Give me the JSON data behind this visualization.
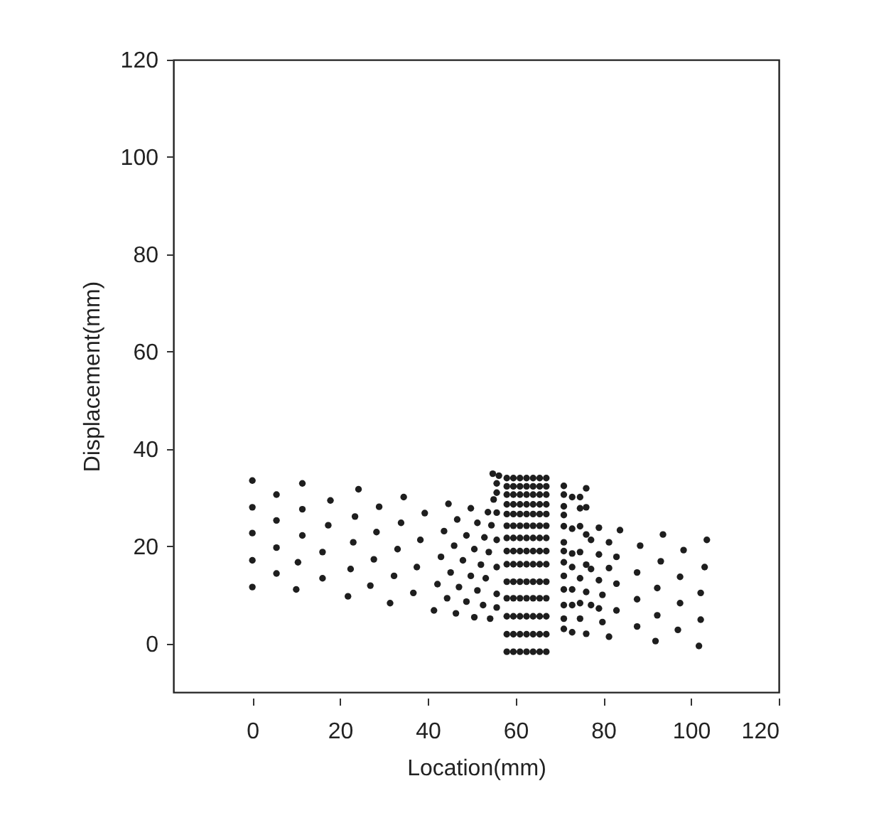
{
  "chart_data": {
    "type": "scatter",
    "xlabel": "Location(mm)",
    "ylabel": "Displacement(mm)",
    "xlim": [
      -18,
      120
    ],
    "ylim": [
      -10,
      120
    ],
    "xticks": [
      0,
      20,
      40,
      60,
      80,
      100,
      120
    ],
    "yticks": [
      0,
      20,
      40,
      60,
      80,
      100,
      120
    ],
    "grid": false,
    "marker": "circle",
    "series": [
      {
        "color": "#1e1e1e",
        "x": [
          0,
          0,
          0,
          0,
          0,
          5.5,
          5.5,
          5.5,
          5.5,
          10,
          10.4,
          11.4,
          11.4,
          11.4,
          16,
          16,
          17.3,
          17.8,
          21.8,
          22.4,
          23,
          23.4,
          24.2,
          26.9,
          27.7,
          28.3,
          28.9,
          31.4,
          32.3,
          33.1,
          33.9,
          34.5,
          36.7,
          37.5,
          38.3,
          39.3,
          41.4,
          42.2,
          43,
          43.7,
          44.7,
          44.4,
          45.2,
          46,
          46.7,
          46.4,
          47.1,
          48,
          48.8,
          49.8,
          48.8,
          49.8,
          50.6,
          51.3,
          50.6,
          51.3,
          52.1,
          52.9,
          53.7,
          52.6,
          53.2,
          53.9,
          54.5,
          55,
          54.8,
          54.2,
          55.7,
          55.7,
          55.7,
          55.7,
          55.7,
          55.7,
          55.7,
          56.2,
          58,
          59.5,
          61,
          62.5,
          64,
          65.5,
          67,
          58,
          59.5,
          61,
          62.5,
          64,
          65.5,
          67,
          58,
          59.5,
          61,
          62.5,
          64,
          65.5,
          67,
          58,
          59.5,
          61,
          62.5,
          64,
          65.5,
          67,
          58,
          59.5,
          61,
          62.5,
          64,
          65.5,
          67,
          58,
          59.5,
          61,
          62.5,
          64,
          65.5,
          67,
          58,
          59.5,
          61,
          62.5,
          64,
          65.5,
          67,
          58,
          59.5,
          61,
          62.5,
          64,
          65.5,
          67,
          58,
          59.5,
          61,
          62.5,
          64,
          65.5,
          67,
          58,
          59.5,
          61,
          62.5,
          64,
          65.5,
          67,
          58,
          59.5,
          61,
          62.5,
          64,
          65.5,
          67,
          58,
          59.5,
          61,
          62.5,
          64,
          65.5,
          67,
          58,
          59.5,
          61,
          62.5,
          64,
          65.5,
          67,
          58,
          59.5,
          61,
          62.5,
          64,
          65.5,
          67,
          71,
          71,
          71,
          71,
          71,
          71,
          71,
          71,
          71,
          71,
          71,
          71,
          71,
          72.9,
          72.9,
          72.9,
          72.9,
          72.9,
          72.9,
          72.9,
          74.7,
          74.7,
          74.7,
          74.7,
          74.7,
          74.7,
          74.7,
          76.1,
          76.1,
          76.1,
          76.1,
          76.1,
          76.1,
          77.2,
          77.2,
          77.2,
          79,
          79,
          79,
          79,
          79.8,
          79.8,
          81.3,
          81.3,
          81.3,
          83,
          83,
          83,
          83.8,
          87.7,
          87.7,
          87.7,
          88.4,
          91.9,
          92.3,
          92.3,
          93.1,
          93.6,
          97,
          97.5,
          97.5,
          98.3,
          101.8,
          102.2,
          102.2,
          103.1,
          103.6
        ],
        "values": [
          33.5,
          28,
          22.7,
          17.1,
          11.6,
          30.6,
          25.3,
          19.7,
          14.4,
          11.1,
          16.7,
          32.9,
          27.6,
          22.2,
          13.4,
          18.8,
          24.3,
          29.4,
          9.7,
          15.3,
          20.8,
          26.1,
          31.7,
          11.9,
          17.3,
          22.9,
          28.1,
          8.3,
          13.9,
          19.4,
          24.8,
          30.1,
          10.4,
          15.7,
          21.3,
          26.8,
          6.8,
          12.2,
          17.8,
          23.1,
          28.7,
          9.3,
          14.6,
          20.1,
          25.5,
          6.2,
          11.6,
          17.1,
          22.2,
          27.8,
          8.6,
          13.9,
          19.4,
          24.8,
          5.4,
          10.9,
          16.2,
          21.8,
          27,
          7.9,
          13.4,
          18.8,
          24.3,
          29.6,
          34.9,
          5.1,
          32.9,
          31,
          26.9,
          21.3,
          15.7,
          10.2,
          7.4,
          34.5,
          -1.7,
          -1.7,
          -1.7,
          -1.7,
          -1.7,
          -1.7,
          -1.7,
          1.9,
          1.9,
          1.9,
          1.9,
          1.9,
          1.9,
          1.9,
          5.6,
          5.6,
          5.6,
          5.6,
          5.6,
          5.6,
          5.6,
          9.3,
          9.3,
          9.3,
          9.3,
          9.3,
          9.3,
          9.3,
          12.7,
          12.7,
          12.7,
          12.7,
          12.7,
          12.7,
          12.7,
          16.3,
          16.3,
          16.3,
          16.3,
          16.3,
          16.3,
          16.3,
          19,
          19,
          19,
          19,
          19,
          19,
          19,
          21.7,
          21.7,
          21.7,
          21.7,
          21.7,
          21.7,
          21.7,
          24.2,
          24.2,
          24.2,
          24.2,
          24.2,
          24.2,
          24.2,
          26.6,
          26.6,
          26.6,
          26.6,
          26.6,
          26.6,
          26.6,
          28.6,
          28.6,
          28.6,
          28.6,
          28.6,
          28.6,
          28.6,
          30.6,
          30.6,
          30.6,
          30.6,
          30.6,
          30.6,
          30.6,
          32.3,
          32.3,
          32.3,
          32.3,
          32.3,
          32.3,
          32.3,
          34,
          34,
          34,
          34,
          34,
          34,
          34,
          32.4,
          30.6,
          28.2,
          26.4,
          24.1,
          20.8,
          19,
          16.7,
          13.9,
          11.1,
          7.9,
          5.1,
          3,
          30.1,
          23.6,
          18.5,
          15.7,
          11.1,
          7.9,
          2.3,
          30.1,
          27.8,
          24.1,
          18.8,
          13.4,
          8.3,
          5.1,
          31.9,
          28,
          22.4,
          16.2,
          10.6,
          2,
          21.3,
          15.3,
          7.9,
          23.8,
          18.3,
          13,
          7.2,
          10,
          4.4,
          20.8,
          15.5,
          1.4,
          17.8,
          12.3,
          6.8,
          23.3,
          14.6,
          9.1,
          3.5,
          20.1,
          0.5,
          11.4,
          5.8,
          16.9,
          22.4,
          2.8,
          8.3,
          13.7,
          19.2,
          -0.5,
          4.9,
          10.4,
          15.7,
          21.3
        ]
      }
    ]
  }
}
